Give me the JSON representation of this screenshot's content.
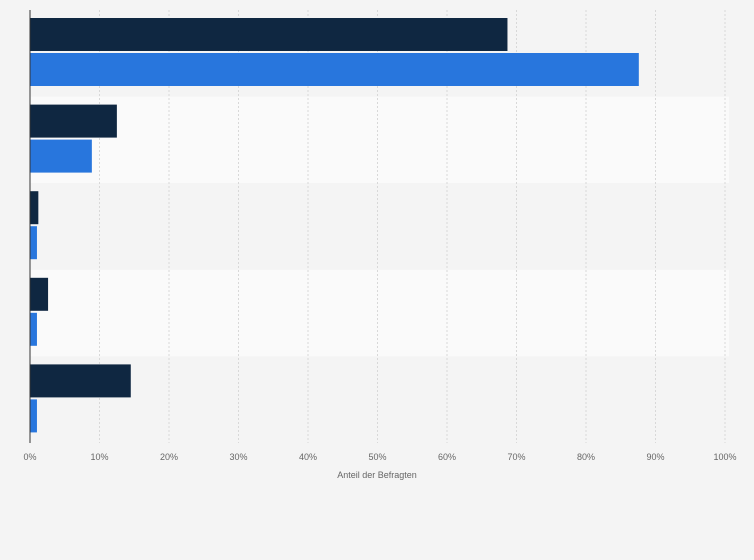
{
  "chart_data": {
    "type": "bar",
    "orientation": "horizontal",
    "title": "",
    "xlabel": "Anteil der Befragten",
    "ylabel": "",
    "xlim": [
      0,
      100
    ],
    "tick_labels": [
      "0%",
      "10%",
      "20%",
      "30%",
      "40%",
      "50%",
      "60%",
      "70%",
      "80%",
      "90%",
      "100%"
    ],
    "categories": [
      "",
      "",
      "",
      "",
      ""
    ],
    "series": [
      {
        "name": "",
        "color": "#0f2741",
        "values": [
          68.7,
          12.5,
          1.2,
          2.6,
          14.5
        ]
      },
      {
        "name": "",
        "color": "#2876dd",
        "values": [
          87.6,
          8.9,
          1.0,
          1.0,
          1.0
        ]
      }
    ],
    "grid": true,
    "legend": "none"
  }
}
